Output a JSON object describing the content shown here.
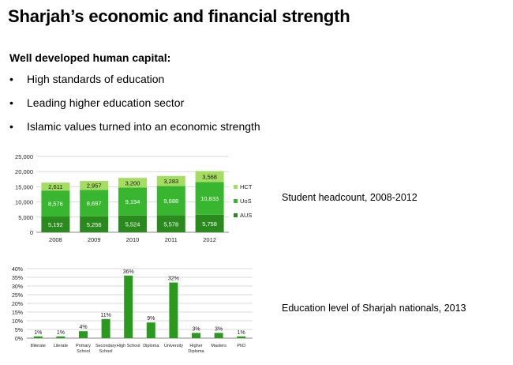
{
  "slide": {
    "title": "Sharjah’s economic and financial strength",
    "subheading": "Well developed human capital:",
    "bullets": [
      "High standards of education",
      "Leading higher education sector",
      "Islamic values turned into an economic strength"
    ],
    "caption_headcount": "Student headcount, 2008-2012",
    "caption_education": "Education level of Sharjah nationals, 2013"
  },
  "colors": {
    "aus": "#2a8a1e",
    "uos": "#38b62f",
    "hct": "#a5dd63",
    "edu": "#2a9a1e"
  },
  "chart_data": [
    {
      "type": "bar",
      "stacked": true,
      "title": "",
      "xlabel": "",
      "ylabel": "",
      "categories": [
        "2008",
        "2009",
        "2010",
        "2011",
        "2012"
      ],
      "series": [
        {
          "name": "AUS",
          "values": [
            5192,
            5256,
            5524,
            5578,
            5758
          ],
          "labels": [
            "5,192",
            "5,256",
            "5,524",
            "5,578",
            "5,758"
          ]
        },
        {
          "name": "UoS",
          "values": [
            8576,
            8697,
            9194,
            9688,
            10833
          ],
          "labels": [
            "8,576",
            "8,697",
            "9,194",
            "9,688",
            "10,833"
          ]
        },
        {
          "name": "HCT",
          "values": [
            2611,
            2957,
            3200,
            3283,
            3568
          ],
          "labels": [
            "2,611",
            "2,957",
            "3,200",
            "3,283",
            "3,568"
          ]
        }
      ],
      "ylim": [
        0,
        25000
      ],
      "yticks": [
        "0",
        "5,000",
        "10,000",
        "15,000",
        "20,000",
        "25,000"
      ],
      "grid": true,
      "legend": "right"
    },
    {
      "type": "bar",
      "title": "",
      "xlabel": "",
      "ylabel": "",
      "categories": [
        [
          "Illiterate"
        ],
        [
          "Literate"
        ],
        [
          "Primary",
          "School"
        ],
        [
          "Secondary",
          "School"
        ],
        [
          "High School"
        ],
        [
          "Diploma"
        ],
        [
          "University"
        ],
        [
          "Higher",
          "Diploma"
        ],
        [
          "Masters"
        ],
        [
          "PhD"
        ]
      ],
      "values": [
        1,
        1,
        4,
        11,
        36,
        9,
        32,
        3,
        3,
        1
      ],
      "labels": [
        "1%",
        "1%",
        "4%",
        "11%",
        "36%",
        "9%",
        "32%",
        "3%",
        "3%",
        "1%"
      ],
      "ylim": [
        0,
        40
      ],
      "yticks": [
        "0%",
        "5%",
        "10%",
        "15%",
        "20%",
        "25%",
        "30%",
        "35%",
        "40%"
      ],
      "grid": true,
      "legend": "none"
    }
  ]
}
